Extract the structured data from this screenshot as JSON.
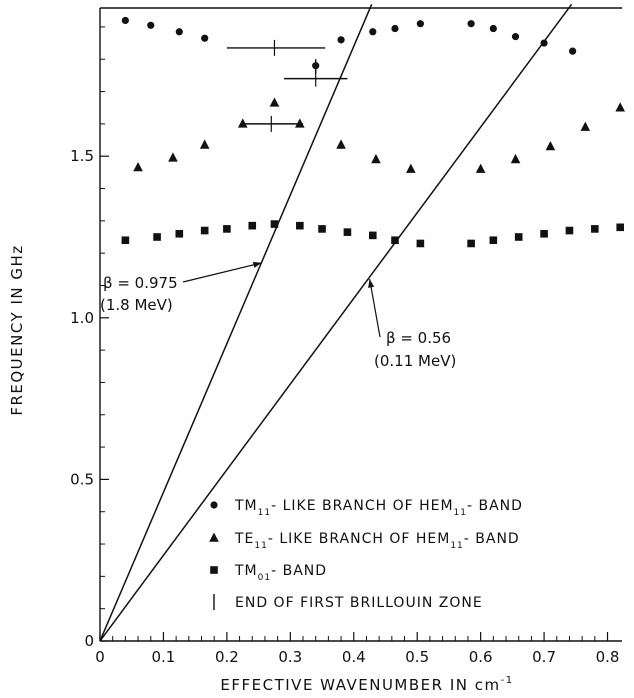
{
  "chart_data": {
    "type": "scatter",
    "title": "",
    "xlabel": "EFFECTIVE WAVENUMBER IN cm",
    "xlabel_sup": "-1",
    "ylabel": "FREQUENCY IN GHz",
    "xlim": [
      0,
      0.85
    ],
    "ylim": [
      0,
      1.95
    ],
    "x_ticks": [
      0,
      0.1,
      0.2,
      0.3,
      0.4,
      0.5,
      0.6,
      0.7,
      0.8
    ],
    "x_tick_labels": [
      "0",
      "0.1",
      "0.2",
      "0.3",
      "0.4",
      "0.5",
      "0.6",
      "0.7",
      "0.8"
    ],
    "y_ticks": [
      0,
      0.5,
      1.0,
      1.5
    ],
    "y_tick_labels": [
      "0",
      "0.5",
      "1.0",
      "1.5"
    ],
    "grid": false,
    "series": [
      {
        "name": "TM11-LIKE BRANCH OF HEM11-BAND",
        "marker": "circle",
        "points": [
          [
            0.04,
            1.92
          ],
          [
            0.08,
            1.905
          ],
          [
            0.125,
            1.885
          ],
          [
            0.165,
            1.865
          ],
          [
            0.34,
            1.78
          ],
          [
            0.38,
            1.86
          ],
          [
            0.43,
            1.885
          ],
          [
            0.465,
            1.895
          ],
          [
            0.505,
            1.91
          ],
          [
            0.585,
            1.91
          ],
          [
            0.62,
            1.895
          ],
          [
            0.655,
            1.87
          ],
          [
            0.7,
            1.85
          ],
          [
            0.745,
            1.825
          ]
        ]
      },
      {
        "name": "TE11-LIKE BRANCH OF HEM11-BAND",
        "marker": "triangle",
        "points": [
          [
            0.06,
            1.465
          ],
          [
            0.115,
            1.495
          ],
          [
            0.165,
            1.535
          ],
          [
            0.225,
            1.6
          ],
          [
            0.275,
            1.665
          ],
          [
            0.315,
            1.6
          ],
          [
            0.38,
            1.535
          ],
          [
            0.435,
            1.49
          ],
          [
            0.49,
            1.46
          ],
          [
            0.6,
            1.46
          ],
          [
            0.655,
            1.49
          ],
          [
            0.71,
            1.53
          ],
          [
            0.765,
            1.59
          ],
          [
            0.82,
            1.65
          ]
        ]
      },
      {
        "name": "TM01-BAND",
        "marker": "square",
        "points": [
          [
            0.04,
            1.24
          ],
          [
            0.09,
            1.25
          ],
          [
            0.125,
            1.26
          ],
          [
            0.165,
            1.27
          ],
          [
            0.2,
            1.275
          ],
          [
            0.24,
            1.285
          ],
          [
            0.275,
            1.29
          ],
          [
            0.315,
            1.285
          ],
          [
            0.35,
            1.275
          ],
          [
            0.39,
            1.265
          ],
          [
            0.43,
            1.255
          ],
          [
            0.465,
            1.24
          ],
          [
            0.505,
            1.23
          ],
          [
            0.585,
            1.23
          ],
          [
            0.62,
            1.24
          ],
          [
            0.66,
            1.25
          ],
          [
            0.7,
            1.26
          ],
          [
            0.74,
            1.27
          ],
          [
            0.78,
            1.275
          ],
          [
            0.82,
            1.28
          ]
        ]
      }
    ],
    "zone_markers": [
      {
        "x1": 0.2,
        "x2": 0.355,
        "y": 1.835,
        "center": 0.275
      },
      {
        "x1": 0.29,
        "x2": 0.39,
        "y": 1.74,
        "center": 0.34
      },
      {
        "x1": 0.225,
        "x2": 0.32,
        "y": 1.6,
        "center": 0.27
      }
    ],
    "zone_marker_vertical": {
      "x": 0.34,
      "y1": 1.755,
      "y2": 1.8
    },
    "lines": [
      {
        "label": "β = 0.975",
        "energy": "(1.8 MeV)",
        "slope": 4.6,
        "arrow_to": [
          0.255,
          1.17
        ]
      },
      {
        "label": "β = 0.56",
        "energy": "(0.11 MeV)",
        "slope": 2.65,
        "arrow_to": [
          0.425,
          1.12
        ]
      }
    ],
    "legend": {
      "placement": "bottom-right",
      "entries": [
        {
          "marker": "circle",
          "main": "TM",
          "sub": "11",
          "rest": "- LIKE BRANCH OF HEM",
          "sub2": "11",
          "rest2": "- BAND"
        },
        {
          "marker": "triangle",
          "main": "TE",
          "sub": "11",
          "rest": "- LIKE BRANCH OF HEM",
          "sub2": "11",
          "rest2": "- BAND"
        },
        {
          "marker": "square",
          "main": "TM",
          "sub": "01",
          "rest": "- BAND",
          "sub2": "",
          "rest2": ""
        },
        {
          "marker": "bar",
          "main": "END OF FIRST BRILLOUIN ZONE",
          "sub": "",
          "rest": "",
          "sub2": "",
          "rest2": ""
        }
      ]
    }
  }
}
